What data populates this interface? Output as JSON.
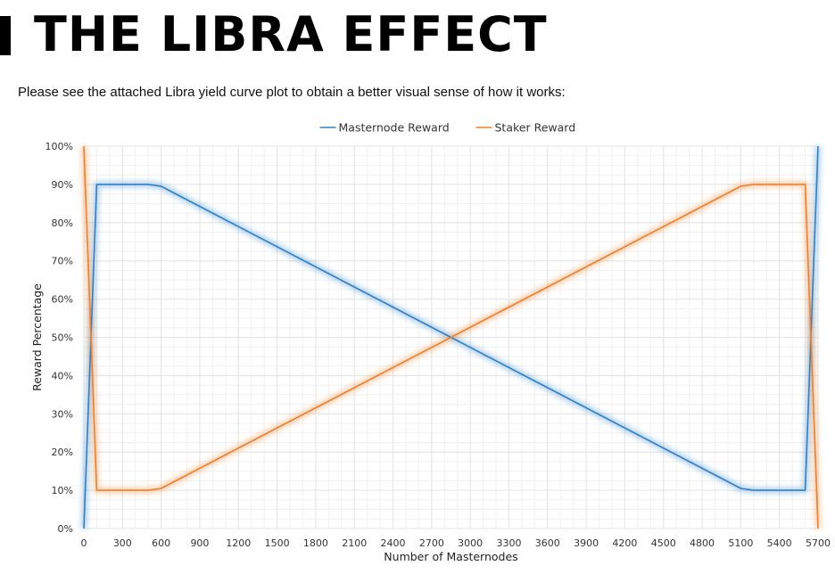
{
  "page": {
    "title": "THE LIBRA EFFECT",
    "intro": "Please see the attached Libra yield curve plot to obtain a better visual sense of how it works:"
  },
  "chart_data": {
    "type": "line",
    "title": "",
    "xlabel": "Number of Masternodes",
    "ylabel": "Reward Percentage",
    "xlim": [
      0,
      5700
    ],
    "ylim": [
      0,
      100
    ],
    "x_ticks": [
      0,
      300,
      600,
      900,
      1200,
      1500,
      1800,
      2100,
      2400,
      2700,
      3000,
      3300,
      3600,
      3900,
      4200,
      4500,
      4800,
      5100,
      5400,
      5700
    ],
    "x_tick_labels": [
      "0",
      "300",
      "600",
      "900",
      "1200",
      "1500",
      "1800",
      "2100",
      "2400",
      "2700",
      "3000",
      "3300",
      "3600",
      "3900",
      "4200",
      "4500",
      "4800",
      "5100",
      "5400",
      "5700"
    ],
    "y_ticks": [
      0,
      10,
      20,
      30,
      40,
      50,
      60,
      70,
      80,
      90,
      100
    ],
    "y_tick_labels": [
      "0%",
      "10%",
      "20%",
      "30%",
      "40%",
      "50%",
      "60%",
      "70%",
      "80%",
      "90%",
      "100%"
    ],
    "legend_position": "top-center",
    "grid": true,
    "series": [
      {
        "name": "Masternode Reward",
        "color": "#2f80c8",
        "points": [
          [
            0,
            0
          ],
          [
            100,
            90
          ],
          [
            500,
            90
          ],
          [
            600,
            89.5
          ],
          [
            5100,
            10.5
          ],
          [
            5200,
            10
          ],
          [
            5600,
            10
          ],
          [
            5700,
            100
          ]
        ]
      },
      {
        "name": "Staker Reward",
        "color": "#f07f2a",
        "points": [
          [
            0,
            100
          ],
          [
            100,
            10
          ],
          [
            500,
            10
          ],
          [
            600,
            10.5
          ],
          [
            5100,
            89.5
          ],
          [
            5200,
            90
          ],
          [
            5600,
            90
          ],
          [
            5700,
            0
          ]
        ]
      }
    ]
  }
}
